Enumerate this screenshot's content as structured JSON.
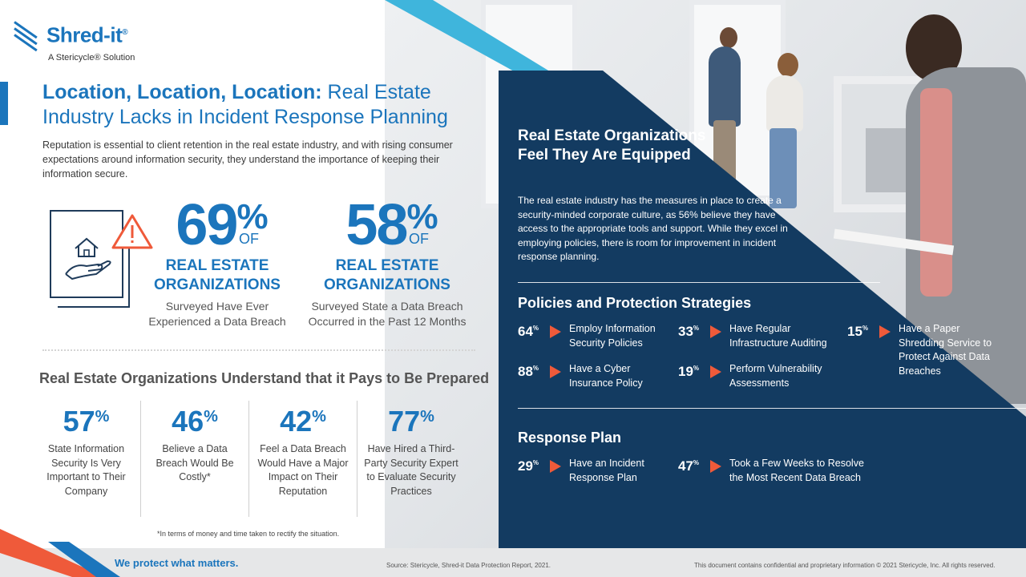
{
  "logo": {
    "name": "Shred-it",
    "registered": "®",
    "sub": "A Stericycle® Solution"
  },
  "title": {
    "bold": "Location, Location, Location:",
    "rest": " Real Estate Industry Lacks in Incident Response Planning"
  },
  "intro": "Reputation is essential to client retention in the real estate industry, and with rising consumer expectations around information security, they understand the importance of keeping their information secure.",
  "big_stats": [
    {
      "value": "69",
      "pct": "%",
      "of": "OF",
      "label1": "REAL ESTATE",
      "label2": "ORGANIZATIONS",
      "desc1": "Surveyed Have Ever",
      "desc2": "Experienced a Data Breach"
    },
    {
      "value": "58",
      "pct": "%",
      "of": "OF",
      "label1": "REAL ESTATE",
      "label2": "ORGANIZATIONS",
      "desc1": "Surveyed State a Data Breach",
      "desc2": "Occurred in the Past 12 Months"
    }
  ],
  "prepared": {
    "heading": "Real Estate Organizations Understand that it Pays to Be Prepared",
    "stats": [
      {
        "value": "57",
        "pct": "%",
        "desc": "State Information Security Is Very Important to Their Company"
      },
      {
        "value": "46",
        "pct": "%",
        "desc": "Believe a Data Breach Would Be Costly*"
      },
      {
        "value": "42",
        "pct": "%",
        "desc": "Feel a Data Breach Would Have a Major Impact on Their Reputation"
      },
      {
        "value": "77",
        "pct": "%",
        "desc": "Have Hired a Third-Party Security Expert to Evaluate Security Practices"
      }
    ],
    "footnote": "*In terms of money and time taken to rectify the situation."
  },
  "equipped": {
    "title": "Real Estate Organizations Feel They Are Equipped",
    "body": "The real estate industry has the measures in place to create a security-minded corporate culture, as 56% believe they have access to the appropriate tools and support. While they excel in employing policies, there is room for improvement in incident response planning."
  },
  "policies": {
    "heading": "Policies and Protection Strategies",
    "items": [
      {
        "value": "64",
        "pct": "%",
        "text": "Employ Information Security Policies"
      },
      {
        "value": "33",
        "pct": "%",
        "text": "Have Regular Infrastructure Auditing"
      },
      {
        "value": "15",
        "pct": "%",
        "text": "Have a Paper Shredding Service to Protect Against Data Breaches"
      },
      {
        "value": "88",
        "pct": "%",
        "text": "Have a Cyber Insurance Policy"
      },
      {
        "value": "19",
        "pct": "%",
        "text": "Perform Vulnerability Assessments"
      }
    ]
  },
  "response": {
    "heading": "Response Plan",
    "items": [
      {
        "value": "29",
        "pct": "%",
        "text": "Have an Incident Response Plan"
      },
      {
        "value": "47",
        "pct": "%",
        "text": "Took a Few Weeks to Resolve the Most Recent Data Breach"
      }
    ]
  },
  "footer": {
    "tagline": "We protect what matters.",
    "source": "Source: Stericycle, Shred-it Data Protection Report, 2021.",
    "legal": "This document contains confidential and proprietary information © 2021 Stericycle, Inc. All rights reserved."
  },
  "colors": {
    "brand_blue": "#1b75bc",
    "navy": "#133b61",
    "accent_orange": "#ef5a3a",
    "stripe_cyan": "#3fb5dc"
  },
  "icons": [
    "shred-it-logo-icon",
    "house-in-hand-icon",
    "warning-triangle-icon",
    "play-arrow-icon"
  ]
}
